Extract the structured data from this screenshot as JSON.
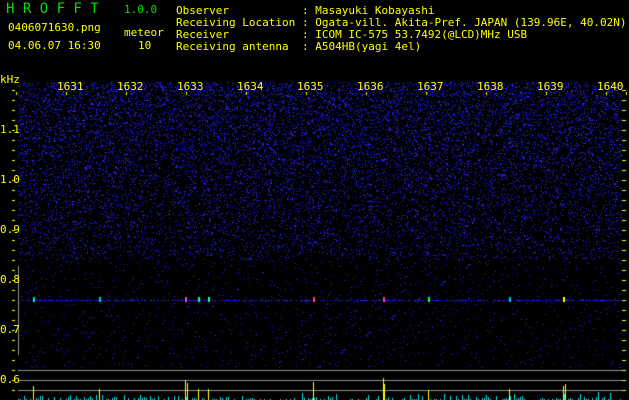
{
  "header": {
    "app_title": "H R O F F T",
    "version": "1.0.0",
    "filename": "0406071630.png",
    "datetime": "04.06.07 16:30",
    "meteor_label": "meteor",
    "meteor_count": "10",
    "info": [
      {
        "label": "Observer",
        "value": ": Masayuki Kobayashi"
      },
      {
        "label": "Receiving Location",
        "value": ": Ogata-vill. Akita-Pref. JAPAN (139.96E, 40.02N)"
      },
      {
        "label": "Receiver",
        "value": ": ICOM IC-575 53.7492(@LCD)MHz USB"
      },
      {
        "label": "Receiving antenna",
        "value": ": A504HB(yagi 4el)"
      }
    ]
  },
  "spectrogram": {
    "y_unit": "kHz",
    "x_ticks": [
      "1631",
      "1632",
      "1633",
      "1634",
      "1635",
      "1636",
      "1637",
      "1638",
      "1639",
      "1640"
    ],
    "y_ticks": [
      "1.1",
      "1.0",
      "0.9",
      "0.8",
      "0.7",
      "0.6"
    ],
    "colors": {
      "text": "#ffff00",
      "title": "#00e000",
      "noise": "#1a1aff",
      "histogram": "#00e0e0",
      "meteor_spike": "#ffff00",
      "guide": "#909090"
    }
  }
}
